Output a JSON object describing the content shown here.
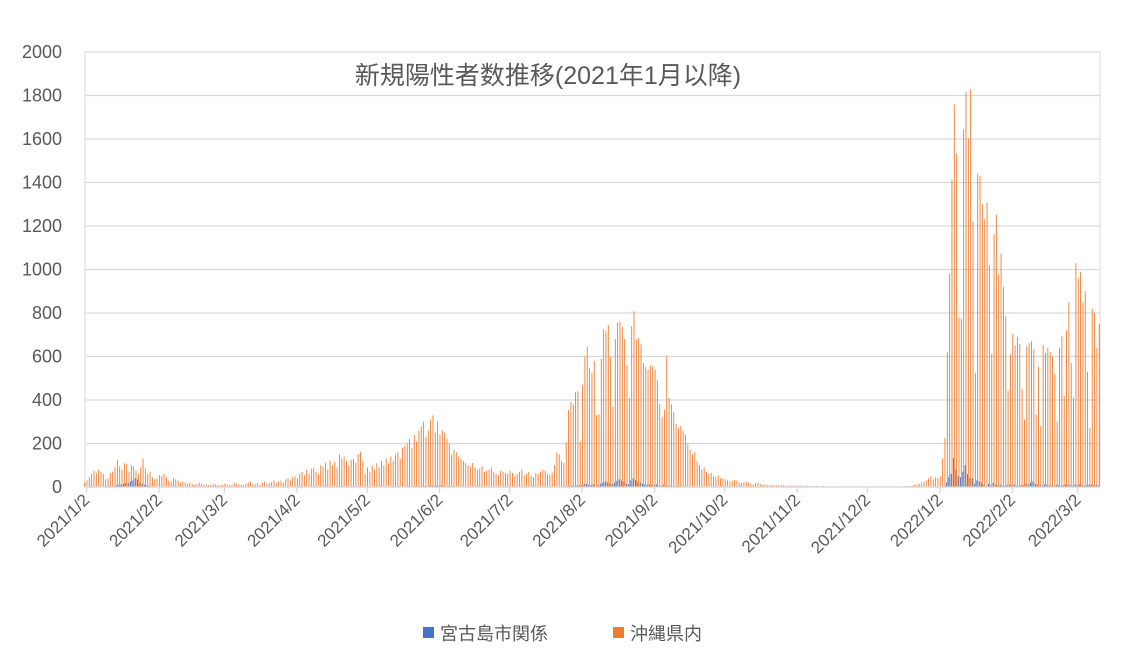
{
  "chart_data": {
    "type": "bar",
    "title": "新規陽性者数推移(2021年1月以降)",
    "xlabel": "",
    "ylabel": "",
    "ylim": [
      0,
      2000
    ],
    "yticks": [
      0,
      200,
      400,
      600,
      800,
      1000,
      1200,
      1400,
      1600,
      1800,
      2000
    ],
    "x_start": "2021/1/1",
    "x_end": "2022/3/11",
    "xticks": [
      "2021/1/2",
      "2021/2/2",
      "2021/3/2",
      "2021/4/2",
      "2021/5/2",
      "2021/6/2",
      "2021/7/2",
      "2021/8/2",
      "2021/9/2",
      "2021/10/2",
      "2021/11/2",
      "2021/12/2",
      "2022/1/2",
      "2022/2/2",
      "2022/3/2"
    ],
    "grid": true,
    "legend_position": "bottom",
    "colors": {
      "宮古島市関係": "#4472C4",
      "沖縄県内": "#ED7D31"
    },
    "series": [
      {
        "name": "宮古島市関係",
        "values": [
          0,
          0,
          1,
          2,
          1,
          0,
          3,
          2,
          1,
          0,
          2,
          5,
          3,
          4,
          8,
          10,
          12,
          15,
          20,
          18,
          25,
          30,
          40,
          35,
          20,
          15,
          10,
          8,
          5,
          3,
          2,
          2,
          1,
          1,
          0,
          1,
          0,
          0,
          1,
          0,
          0,
          0,
          1,
          0,
          0,
          0,
          0,
          0,
          0,
          0,
          0,
          0,
          0,
          0,
          0,
          0,
          0,
          0,
          0,
          0,
          0,
          0,
          0,
          0,
          0,
          0,
          0,
          0,
          0,
          0,
          0,
          0,
          0,
          0,
          0,
          0,
          0,
          0,
          0,
          0,
          0,
          0,
          0,
          0,
          0,
          0,
          0,
          0,
          1,
          0,
          0,
          1,
          0,
          0,
          1,
          0,
          0,
          2,
          1,
          0,
          0,
          1,
          2,
          1,
          0,
          2,
          1,
          0,
          1,
          3,
          2,
          1,
          0,
          1,
          2,
          1,
          0,
          2,
          3,
          1,
          1,
          0,
          2,
          1,
          0,
          1,
          2,
          3,
          1,
          0,
          2,
          1,
          0,
          1,
          2,
          3,
          2,
          1,
          3,
          4,
          2,
          3,
          5,
          4,
          3,
          6,
          5,
          4,
          8,
          6,
          5,
          6,
          5,
          8,
          4,
          3,
          5,
          2,
          3,
          2,
          1,
          2,
          1,
          0,
          1,
          2,
          1,
          0,
          1,
          1,
          0,
          1,
          0,
          1,
          0,
          0,
          1,
          0,
          0,
          1,
          0,
          0,
          1,
          0,
          0,
          1,
          0,
          0,
          1,
          0,
          0,
          0,
          1,
          0,
          0,
          1,
          0,
          0,
          1,
          0,
          0,
          1,
          2,
          1,
          2,
          3,
          2,
          4,
          5,
          6,
          5,
          8,
          8,
          10,
          12,
          15,
          10,
          8,
          12,
          6,
          8,
          15,
          20,
          25,
          22,
          18,
          12,
          20,
          28,
          35,
          30,
          25,
          15,
          12,
          30,
          40,
          32,
          25,
          20,
          15,
          12,
          10,
          12,
          10,
          8,
          12,
          6,
          5,
          10,
          8,
          6,
          5,
          4,
          3,
          5,
          4,
          3,
          2,
          2,
          1,
          2,
          1,
          1,
          0,
          1,
          0,
          1,
          0,
          0,
          1,
          0,
          0,
          0,
          0,
          0,
          0,
          0,
          0,
          0,
          0,
          0,
          0,
          0,
          0,
          0,
          0,
          0,
          0,
          0,
          0,
          0,
          0,
          0,
          0,
          0,
          0,
          0,
          0,
          0,
          0,
          0,
          0,
          0,
          0,
          0,
          0,
          0,
          0,
          0,
          0,
          0,
          0,
          0,
          0,
          0,
          0,
          0,
          0,
          0,
          0,
          0,
          0,
          0,
          0,
          0,
          0,
          0,
          0,
          0,
          0,
          0,
          0,
          0,
          0,
          0,
          0,
          0,
          0,
          0,
          0,
          0,
          0,
          0,
          0,
          0,
          0,
          0,
          0,
          0,
          0,
          0,
          0,
          0,
          0,
          0,
          0,
          0,
          0,
          0,
          0,
          1,
          0,
          1,
          2,
          1,
          0,
          0,
          0,
          5,
          20,
          45,
          60,
          133,
          80,
          50,
          45,
          70,
          100,
          60,
          40,
          40,
          15,
          30,
          25,
          20,
          10,
          5,
          15,
          8,
          20,
          10,
          8,
          10,
          6,
          5,
          8,
          10,
          8,
          12,
          6,
          5,
          10,
          8,
          15,
          12,
          20,
          25,
          15,
          10,
          8,
          6,
          12,
          10,
          8,
          5,
          6,
          10,
          8,
          6,
          8,
          12,
          10,
          8,
          6,
          10,
          8,
          12,
          10,
          6,
          8,
          10,
          12,
          8,
          10,
          6
        ]
      },
      {
        "name": "沖縄県内",
        "values": [
          20,
          30,
          45,
          60,
          75,
          65,
          80,
          70,
          60,
          35,
          40,
          65,
          70,
          90,
          125,
          95,
          80,
          110,
          105,
          70,
          100,
          95,
          75,
          60,
          90,
          130,
          85,
          60,
          70,
          45,
          35,
          40,
          55,
          50,
          60,
          45,
          30,
          25,
          40,
          35,
          30,
          20,
          25,
          20,
          15,
          20,
          15,
          10,
          12,
          20,
          15,
          10,
          12,
          8,
          10,
          15,
          12,
          10,
          8,
          10,
          15,
          12,
          8,
          10,
          20,
          15,
          12,
          10,
          8,
          15,
          20,
          25,
          15,
          12,
          18,
          10,
          20,
          25,
          15,
          20,
          22,
          30,
          18,
          25,
          30,
          20,
          35,
          40,
          30,
          45,
          50,
          40,
          60,
          70,
          55,
          80,
          60,
          85,
          90,
          70,
          60,
          100,
          95,
          110,
          80,
          120,
          100,
          115,
          90,
          150,
          130,
          140,
          120,
          100,
          125,
          130,
          110,
          150,
          160,
          120,
          60,
          90,
          70,
          100,
          80,
          110,
          90,
          120,
          100,
          130,
          110,
          140,
          120,
          150,
          160,
          130,
          180,
          190,
          200,
          220,
          180,
          240,
          210,
          260,
          280,
          300,
          230,
          260,
          310,
          330,
          250,
          300,
          240,
          260,
          250,
          220,
          200,
          150,
          170,
          160,
          140,
          130,
          120,
          110,
          100,
          95,
          110,
          90,
          80,
          85,
          95,
          70,
          75,
          80,
          90,
          70,
          60,
          55,
          75,
          70,
          65,
          60,
          75,
          65,
          50,
          60,
          70,
          80,
          55,
          60,
          70,
          50,
          45,
          65,
          60,
          70,
          80,
          75,
          60,
          55,
          65,
          100,
          160,
          150,
          120,
          110,
          207,
          354,
          390,
          380,
          437,
          440,
          210,
          470,
          600,
          645,
          545,
          525,
          580,
          330,
          335,
          590,
          725,
          715,
          745,
          600,
          370,
          680,
          755,
          760,
          735,
          680,
          560,
          410,
          740,
          808,
          680,
          685,
          655,
          570,
          550,
          540,
          560,
          555,
          540,
          490,
          380,
          320,
          355,
          600,
          410,
          380,
          345,
          290,
          270,
          280,
          260,
          240,
          200,
          170,
          150,
          160,
          120,
          100,
          80,
          90,
          70,
          60,
          65,
          50,
          45,
          55,
          40,
          40,
          35,
          30,
          25,
          28,
          32,
          30,
          20,
          18,
          22,
          25,
          20,
          15,
          12,
          18,
          20,
          15,
          10,
          12,
          10,
          8,
          10,
          9,
          8,
          7,
          10,
          8,
          6,
          5,
          7,
          6,
          5,
          6,
          8,
          5,
          4,
          6,
          5,
          3,
          4,
          5,
          3,
          2,
          4,
          3,
          2,
          3,
          2,
          1,
          2,
          3,
          2,
          1,
          2,
          1,
          2,
          1,
          2,
          1,
          1,
          2,
          1,
          2,
          1,
          0,
          1,
          2,
          1,
          0,
          1,
          2,
          1,
          1,
          0,
          1,
          2,
          3,
          2,
          4,
          5,
          3,
          6,
          10,
          12,
          15,
          20,
          25,
          30,
          40,
          50,
          35,
          45,
          40,
          50,
          130,
          225,
          620,
          980,
          1414,
          1759,
          1533,
          779,
          775,
          1644,
          1817,
          1603,
          1829,
          1221,
          525,
          1440,
          1429,
          1300,
          1230,
          1306,
          1019,
          612,
          1163,
          1253,
          978,
          1073,
          920,
          784,
          443,
          610,
          704,
          650,
          690,
          658,
          450,
          310,
          648,
          663,
          670,
          633,
          333,
          551,
          282,
          653,
          617,
          640,
          620,
          600,
          520,
          300,
          640,
          692,
          420,
          721,
          850,
          570,
          410,
          1030,
          960,
          990,
          850,
          900,
          530,
          270,
          820,
          800,
          640,
          750
        ]
      }
    ]
  }
}
